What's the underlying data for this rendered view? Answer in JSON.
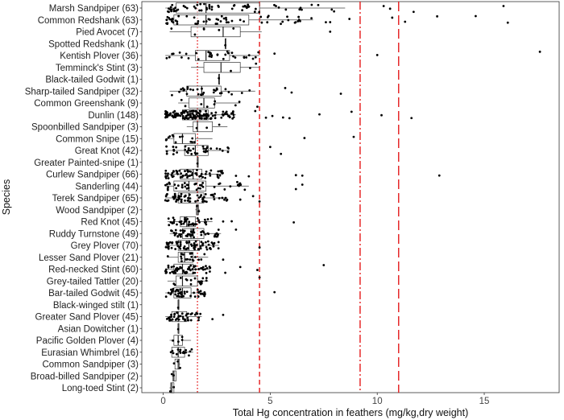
{
  "chart_data": {
    "type": "box-jitter",
    "xlabel": "Total Hg concentration in feathers (mg/kg,dry weight)",
    "ylabel": "Species",
    "xlim": [
      -1,
      18.5
    ],
    "x_ticks": [
      0,
      5,
      10,
      15
    ],
    "grid": false,
    "legend": "none",
    "reference_lines": [
      {
        "x": 1.6,
        "style": "dotted",
        "color": "#e41a1c"
      },
      {
        "x": 4.5,
        "style": "dashed",
        "color": "#e41a1c"
      },
      {
        "x": 9.2,
        "style": "dashdot",
        "color": "#e41a1c"
      },
      {
        "x": 11.0,
        "style": "longdash",
        "color": "#e41a1c"
      }
    ],
    "categories": [
      {
        "label": "Marsh Sandpiper (63)",
        "n": 63,
        "q1": 0.6,
        "median": 2.0,
        "q3": 4.5,
        "whisker_low": 0.1,
        "whisker_high": 8.5,
        "outliers": [
          10.3,
          10.6,
          11.7,
          15.9
        ]
      },
      {
        "label": "Common Redshank (63)",
        "n": 63,
        "q1": 0.5,
        "median": 2.0,
        "q3": 4.0,
        "whisker_low": 0.1,
        "whisker_high": 7.0,
        "outliers": [
          7.6,
          7.8,
          8.7,
          10.7,
          11.3,
          12.8,
          14.6,
          16.1
        ]
      },
      {
        "label": "Pied Avocet (7)",
        "n": 7,
        "q1": 1.3,
        "median": 2.8,
        "q3": 3.6,
        "whisker_low": 0.3,
        "whisker_high": 4.6,
        "outliers": [
          7.8
        ]
      },
      {
        "label": "Spotted Redshank (1)",
        "n": 1,
        "q1": 2.9,
        "median": 2.9,
        "q3": 2.9,
        "whisker_low": 2.9,
        "whisker_high": 2.9,
        "outliers": []
      },
      {
        "label": "Kentish Plover (36)",
        "n": 36,
        "q1": 1.5,
        "median": 2.0,
        "q3": 3.1,
        "whisker_low": 0.1,
        "whisker_high": 4.5,
        "outliers": [
          5.2,
          10.0,
          17.6
        ]
      },
      {
        "label": "Temminck's Stint (3)",
        "n": 3,
        "q1": 1.9,
        "median": 2.7,
        "q3": 3.6,
        "whisker_low": 1.3,
        "whisker_high": 4.5,
        "outliers": []
      },
      {
        "label": "Black-tailed Godwit (1)",
        "n": 1,
        "q1": 2.6,
        "median": 2.6,
        "q3": 2.6,
        "whisker_low": 2.6,
        "whisker_high": 2.6,
        "outliers": []
      },
      {
        "label": "Sharp-tailed Sandpiper (32)",
        "n": 32,
        "q1": 1.1,
        "median": 1.8,
        "q3": 2.7,
        "whisker_low": 0.3,
        "whisker_high": 4.3,
        "outliers": [
          5.7,
          6.0,
          8.3
        ]
      },
      {
        "label": "Common Greenshank (9)",
        "n": 9,
        "q1": 1.2,
        "median": 1.9,
        "q3": 2.4,
        "whisker_low": 0.7,
        "whisker_high": 3.6,
        "outliers": [
          4.4
        ]
      },
      {
        "label": "Dunlin (148)",
        "n": 148,
        "q1": 0.9,
        "median": 1.4,
        "q3": 2.1,
        "whisker_low": 0.1,
        "whisker_high": 3.4,
        "outliers": [
          4.3,
          4.8,
          5.1,
          5.6,
          5.9,
          7.3,
          8.8,
          10.2,
          11.6
        ]
      },
      {
        "label": "Spoonbilled Sandpiper (3)",
        "n": 3,
        "q1": 1.4,
        "median": 1.6,
        "q3": 2.3,
        "whisker_low": 1.1,
        "whisker_high": 3.0,
        "outliers": []
      },
      {
        "label": "Common Snipe (15)",
        "n": 15,
        "q1": 0.5,
        "median": 0.9,
        "q3": 1.5,
        "whisker_low": 0.1,
        "whisker_high": 2.3,
        "outliers": [
          6.6,
          8.9
        ]
      },
      {
        "label": "Great Knot (42)",
        "n": 42,
        "q1": 1.0,
        "median": 1.5,
        "q3": 2.1,
        "whisker_low": 0.1,
        "whisker_high": 3.1,
        "outliers": [
          5.0,
          5.5
        ]
      },
      {
        "label": "Greater Painted-snipe (1)",
        "n": 1,
        "q1": 1.6,
        "median": 1.6,
        "q3": 1.6,
        "whisker_low": 1.6,
        "whisker_high": 1.6,
        "outliers": []
      },
      {
        "label": "Curlew Sandpiper (66)",
        "n": 66,
        "q1": 0.8,
        "median": 1.4,
        "q3": 1.8,
        "whisker_low": 0.1,
        "whisker_high": 2.8,
        "outliers": [
          3.4,
          4.0,
          6.2,
          6.5,
          12.9
        ]
      },
      {
        "label": "Sanderling (44)",
        "n": 44,
        "q1": 0.5,
        "median": 1.2,
        "q3": 2.0,
        "whisker_low": 0.1,
        "whisker_high": 4.0,
        "outliers": [
          6.2,
          6.5
        ]
      },
      {
        "label": "Terek Sandpiper (65)",
        "n": 65,
        "q1": 0.7,
        "median": 1.2,
        "q3": 1.9,
        "whisker_low": 0.1,
        "whisker_high": 3.0,
        "outliers": [
          3.6,
          4.2,
          4.5
        ]
      },
      {
        "label": "Wood Sandpiper (2)",
        "n": 2,
        "q1": 1.55,
        "median": 1.6,
        "q3": 1.65,
        "whisker_low": 1.5,
        "whisker_high": 1.7,
        "outliers": []
      },
      {
        "label": "Red Knot (45)",
        "n": 45,
        "q1": 0.8,
        "median": 1.1,
        "q3": 1.5,
        "whisker_low": 0.2,
        "whisker_high": 2.3,
        "outliers": [
          2.8,
          3.2,
          6.1
        ]
      },
      {
        "label": "Ruddy Turnstone (49)",
        "n": 49,
        "q1": 0.9,
        "median": 1.3,
        "q3": 1.9,
        "whisker_low": 0.3,
        "whisker_high": 2.7,
        "outliers": [
          3.4
        ]
      },
      {
        "label": "Grey Plover (70)",
        "n": 70,
        "q1": 0.7,
        "median": 1.2,
        "q3": 1.7,
        "whisker_low": 0.1,
        "whisker_high": 2.6,
        "outliers": [
          4.5
        ]
      },
      {
        "label": "Lesser Sand Plover (21)",
        "n": 21,
        "q1": 0.7,
        "median": 1.0,
        "q3": 1.4,
        "whisker_low": 0.2,
        "whisker_high": 2.1,
        "outliers": [
          2.8
        ]
      },
      {
        "label": "Red-necked Stint (60)",
        "n": 60,
        "q1": 0.5,
        "median": 0.9,
        "q3": 1.4,
        "whisker_low": 0.1,
        "whisker_high": 2.2,
        "outliers": [
          2.9,
          3.6,
          4.4,
          7.5
        ]
      },
      {
        "label": "Grey-tailed Tattler (20)",
        "n": 20,
        "q1": 0.6,
        "median": 0.9,
        "q3": 1.6,
        "whisker_low": 0.2,
        "whisker_high": 2.1,
        "outliers": [
          4.5
        ]
      },
      {
        "label": "Bar-tailed Godwit (45)",
        "n": 45,
        "q1": 0.5,
        "median": 0.9,
        "q3": 1.3,
        "whisker_low": 0.1,
        "whisker_high": 2.0,
        "outliers": [
          5.2
        ]
      },
      {
        "label": "Black-winged stilt (1)",
        "n": 1,
        "q1": 0.7,
        "median": 0.7,
        "q3": 0.7,
        "whisker_low": 0.7,
        "whisker_high": 0.7,
        "outliers": []
      },
      {
        "label": "Greater Sand Plover (45)",
        "n": 45,
        "q1": 0.4,
        "median": 0.7,
        "q3": 1.1,
        "whisker_low": 0.1,
        "whisker_high": 1.8,
        "outliers": [
          2.3,
          2.8
        ]
      },
      {
        "label": "Asian Dowitcher (1)",
        "n": 1,
        "q1": 0.7,
        "median": 0.7,
        "q3": 0.7,
        "whisker_low": 0.7,
        "whisker_high": 0.7,
        "outliers": []
      },
      {
        "label": "Pacific Golden Plover (4)",
        "n": 4,
        "q1": 0.5,
        "median": 0.7,
        "q3": 0.9,
        "whisker_low": 0.3,
        "whisker_high": 1.3,
        "outliers": []
      },
      {
        "label": "Eurasian Whimbrel (16)",
        "n": 16,
        "q1": 0.4,
        "median": 0.7,
        "q3": 1.0,
        "whisker_low": 0.3,
        "whisker_high": 1.4,
        "outliers": []
      },
      {
        "label": "Common Sandpiper (3)",
        "n": 3,
        "q1": 0.55,
        "median": 0.7,
        "q3": 0.75,
        "whisker_low": 0.5,
        "whisker_high": 0.8,
        "outliers": []
      },
      {
        "label": "Broad-billed Sandpiper (2)",
        "n": 2,
        "q1": 0.45,
        "median": 0.5,
        "q3": 0.6,
        "whisker_low": 0.4,
        "whisker_high": 0.6,
        "outliers": []
      },
      {
        "label": "Long-toed Stint (2)",
        "n": 2,
        "q1": 0.35,
        "median": 0.4,
        "q3": 0.5,
        "whisker_low": 0.3,
        "whisker_high": 0.5,
        "outliers": []
      }
    ]
  }
}
